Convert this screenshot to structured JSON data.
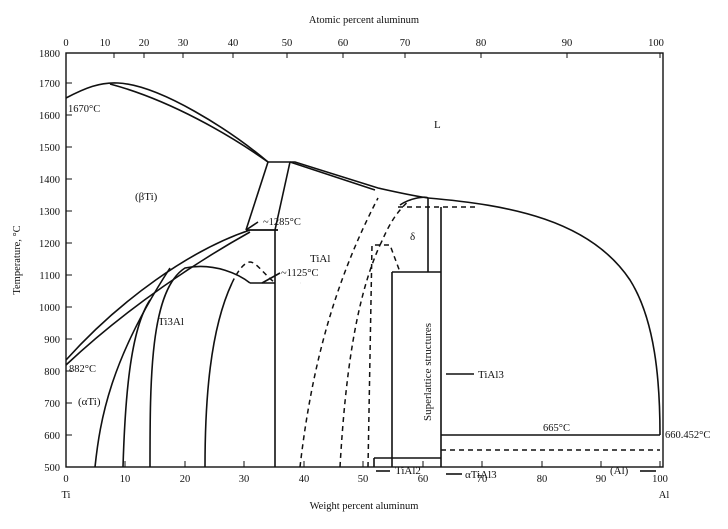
{
  "diagram": {
    "top_axis_title": "Atomic percent aluminum",
    "bottom_axis_title": "Weight percent aluminum",
    "y_axis_title": "Temperature, °C",
    "left_element": "Ti",
    "right_element": "Al",
    "top_ticks": [
      "0",
      "10",
      "20",
      "30",
      "40",
      "50",
      "60",
      "70",
      "80",
      "90",
      "100"
    ],
    "bottom_ticks": [
      "0",
      "10",
      "20",
      "30",
      "40",
      "50",
      "60",
      "70",
      "80",
      "90",
      "100"
    ],
    "y_ticks": [
      "500",
      "600",
      "700",
      "800",
      "900",
      "1000",
      "1100",
      "1200",
      "1300",
      "1400",
      "1500",
      "1600",
      "1700",
      "1800"
    ],
    "annotations": {
      "ti_melting": "1670°C",
      "peritectic": "~1285°C",
      "eutectoid": "~1125°C",
      "ti_transformation": "882°C",
      "eutectic_665": "665°C",
      "al_melting": "660.452°C"
    },
    "phases": {
      "liquid": "L",
      "beta_ti": "(βTi)",
      "tial": "TiAl",
      "delta": "δ",
      "ti3al": "Ti3Al",
      "alpha_ti": "(αTi)",
      "superlattice": "Superlattice structures",
      "tial3_right": "TiAl3",
      "tial2": "TiAl2",
      "alpha_tial3": "αTiAl3",
      "al_phase": "(Al)"
    },
    "y_range": [
      500,
      1800
    ],
    "x_range_weight_percent": [
      0,
      100
    ]
  }
}
